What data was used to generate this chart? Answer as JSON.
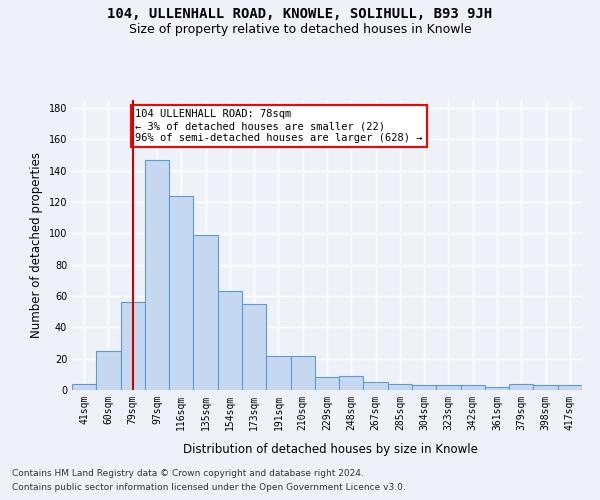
{
  "title": "104, ULLENHALL ROAD, KNOWLE, SOLIHULL, B93 9JH",
  "subtitle": "Size of property relative to detached houses in Knowle",
  "xlabel": "Distribution of detached houses by size in Knowle",
  "ylabel": "Number of detached properties",
  "footer_line1": "Contains HM Land Registry data © Crown copyright and database right 2024.",
  "footer_line2": "Contains public sector information licensed under the Open Government Licence v3.0.",
  "categories": [
    "41sqm",
    "60sqm",
    "79sqm",
    "97sqm",
    "116sqm",
    "135sqm",
    "154sqm",
    "173sqm",
    "191sqm",
    "210sqm",
    "229sqm",
    "248sqm",
    "267sqm",
    "285sqm",
    "304sqm",
    "323sqm",
    "342sqm",
    "361sqm",
    "379sqm",
    "398sqm",
    "417sqm"
  ],
  "values": [
    4,
    25,
    56,
    147,
    124,
    99,
    63,
    55,
    22,
    22,
    8,
    9,
    5,
    4,
    3,
    3,
    3,
    2,
    4,
    3,
    3
  ],
  "bar_color": "#c5d8f0",
  "bar_edge_color": "#5b9bd5",
  "red_line_index": 2,
  "annotation_text": "104 ULLENHALL ROAD: 78sqm\n← 3% of detached houses are smaller (22)\n96% of semi-detached houses are larger (628) →",
  "annotation_box_color": "white",
  "annotation_box_edge_color": "red",
  "red_line_color": "#cc0000",
  "ylim": [
    0,
    185
  ],
  "yticks": [
    0,
    20,
    40,
    60,
    80,
    100,
    120,
    140,
    160,
    180
  ],
  "background_color": "#eef2f8",
  "grid_color": "white",
  "title_fontsize": 10,
  "subtitle_fontsize": 9,
  "axis_label_fontsize": 8.5,
  "tick_fontsize": 7,
  "annotation_fontsize": 7.5,
  "footer_fontsize": 6.5
}
